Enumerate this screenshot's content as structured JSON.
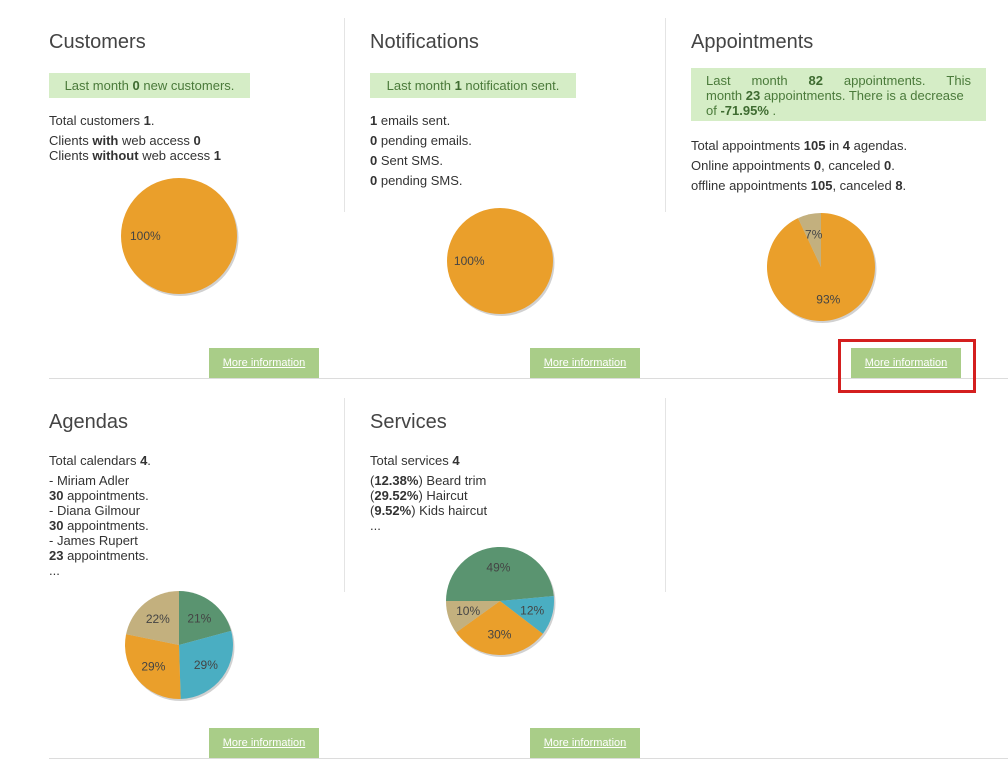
{
  "colors": {
    "orange": "#ea9f2b",
    "tan": "#c3b07e",
    "green": "#5a9470",
    "teal": "#4aaec2",
    "banner_bg": "#d5edc6",
    "button_bg": "#a9cd88",
    "highlight": "#d41f1f"
  },
  "more_label": "More information",
  "customers": {
    "title": "Customers",
    "banner": {
      "pre": "Last month ",
      "count": "0",
      "post": " new customers."
    },
    "total": {
      "pre": "Total customers ",
      "val": "1",
      "post": "."
    },
    "with": {
      "pre": "Clients ",
      "bold": "with",
      "mid": " web access ",
      "val": "0"
    },
    "without": {
      "pre": "Clients ",
      "bold": "without",
      "mid": " web access ",
      "val": "1"
    },
    "chart_data": {
      "type": "pie",
      "slices": [
        {
          "label": "100%",
          "value": 100,
          "color": "orange"
        }
      ]
    }
  },
  "notifications": {
    "title": "Notifications",
    "banner": {
      "pre": "Last month ",
      "count": "1",
      "post": " notification sent."
    },
    "lines": [
      {
        "val": "1",
        "text": " emails sent."
      },
      {
        "val": "0",
        "text": " pending emails."
      },
      {
        "val": "0",
        "text": " Sent SMS."
      },
      {
        "val": "0",
        "text": " pending SMS."
      }
    ],
    "chart_data": {
      "type": "pie",
      "slices": [
        {
          "label": "100%",
          "value": 100,
          "color": "orange"
        }
      ]
    }
  },
  "appointments": {
    "title": "Appointments",
    "banner": {
      "w1": "Last",
      "w2": "month",
      "last_count": "82",
      "w3": "appointments.",
      "w4": "This",
      "l2_pre": "month ",
      "this_count": "23",
      "l2_post": " appointments. There is a decrease",
      "l3_pre": "of ",
      "decrease": "-71.95%",
      "l3_post": " ."
    },
    "total": {
      "pre": "Total appointments ",
      "count": "105",
      "mid": " in ",
      "agendas": "4",
      "post": " agendas."
    },
    "online": {
      "pre": "Online appointments ",
      "val": "0",
      "mid": ", canceled ",
      "canceled": "0",
      "post": "."
    },
    "offline": {
      "pre": "offline appointments ",
      "val": "105",
      "mid": ", canceled ",
      "canceled": "8",
      "post": "."
    },
    "chart_data": {
      "type": "pie",
      "slices": [
        {
          "label": "93%",
          "value": 93,
          "color": "orange"
        },
        {
          "label": "7%",
          "value": 7,
          "color": "tan"
        }
      ]
    }
  },
  "agendas": {
    "title": "Agendas",
    "total": {
      "pre": "Total calendars ",
      "val": "4",
      "post": "."
    },
    "items": [
      {
        "name": "- Miriam Adler",
        "count": "30",
        "suffix": " appointments."
      },
      {
        "name": "- Diana Gilmour",
        "count": "30",
        "suffix": " appointments."
      },
      {
        "name": "- James Rupert",
        "count": "23",
        "suffix": " appointments."
      }
    ],
    "ellipsis": "...",
    "chart_data": {
      "type": "pie",
      "slices": [
        {
          "label": "21%",
          "value": 21,
          "color": "green"
        },
        {
          "label": "29%",
          "value": 29,
          "color": "teal"
        },
        {
          "label": "29%",
          "value": 29,
          "color": "orange"
        },
        {
          "label": "22%",
          "value": 22,
          "color": "tan"
        }
      ]
    }
  },
  "services": {
    "title": "Services",
    "total": {
      "pre": "Total services ",
      "val": "4"
    },
    "items": [
      {
        "pct": "12.38%",
        "name": " Beard trim"
      },
      {
        "pct": "29.52%",
        "name": " Haircut"
      },
      {
        "pct": "9.52%",
        "name": " Kids haircut"
      }
    ],
    "ellipsis": "...",
    "chart_data": {
      "type": "pie",
      "slices": [
        {
          "label": "49%",
          "value": 49,
          "color": "green"
        },
        {
          "label": "12%",
          "value": 12,
          "color": "teal"
        },
        {
          "label": "30%",
          "value": 30,
          "color": "orange"
        },
        {
          "label": "10%",
          "value": 10,
          "color": "tan"
        }
      ]
    }
  }
}
